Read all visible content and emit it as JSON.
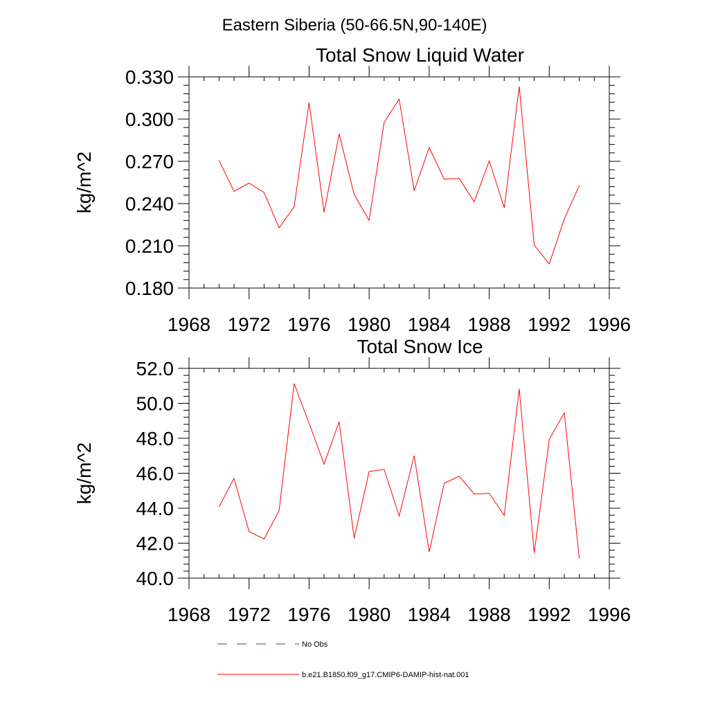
{
  "figure": {
    "title": "Eastern Siberia (50-66.5N,90-140E)"
  },
  "chart_data": [
    {
      "type": "line",
      "title": "Total Snow Liquid Water",
      "xlabel": "",
      "ylabel": "kg/m^2",
      "xlim": [
        1968,
        1996
      ],
      "ylim": [
        0.18,
        0.33
      ],
      "xticks": [
        1968,
        1972,
        1976,
        1980,
        1984,
        1988,
        1992,
        1996
      ],
      "xtick_labels": [
        "1968",
        "1972",
        "1976",
        "1980",
        "1984",
        "1988",
        "1992",
        "1996"
      ],
      "yticks": [
        0.18,
        0.21,
        0.24,
        0.27,
        0.3,
        0.33
      ],
      "ytick_labels": [
        "0.180",
        "0.210",
        "0.240",
        "0.270",
        "0.300",
        "0.330"
      ],
      "grid": false,
      "x": [
        1970,
        1971,
        1972,
        1973,
        1974,
        1975,
        1976,
        1977,
        1978,
        1979,
        1980,
        1981,
        1982,
        1983,
        1984,
        1985,
        1986,
        1987,
        1988,
        1989,
        1990,
        1991,
        1992,
        1993,
        1994
      ],
      "series": [
        {
          "name": "b.e21.B1850.f09_g17.CMIP6-DAMIP-hist-nat.001",
          "color": "#ff0000",
          "values": [
            0.2705,
            0.2487,
            0.2545,
            0.2478,
            0.2228,
            0.2378,
            0.3117,
            0.2337,
            0.2895,
            0.2465,
            0.228,
            0.2976,
            0.3142,
            0.2491,
            0.2798,
            0.2573,
            0.2578,
            0.2413,
            0.2703,
            0.237,
            0.3231,
            0.2105,
            0.1971,
            0.2291,
            0.2527
          ]
        }
      ]
    },
    {
      "type": "line",
      "title": "Total Snow Ice",
      "xlabel": "",
      "ylabel": "kg/m^2",
      "xlim": [
        1968,
        1996
      ],
      "ylim": [
        40.0,
        52.0
      ],
      "xticks": [
        1968,
        1972,
        1976,
        1980,
        1984,
        1988,
        1992,
        1996
      ],
      "xtick_labels": [
        "1968",
        "1972",
        "1976",
        "1980",
        "1984",
        "1988",
        "1992",
        "1996"
      ],
      "yticks": [
        40.0,
        42.0,
        44.0,
        46.0,
        48.0,
        50.0,
        52.0
      ],
      "ytick_labels": [
        "40.0",
        "42.0",
        "44.0",
        "46.0",
        "48.0",
        "50.0",
        "52.0"
      ],
      "grid": false,
      "x": [
        1970,
        1971,
        1972,
        1973,
        1974,
        1975,
        1976,
        1977,
        1978,
        1979,
        1980,
        1981,
        1982,
        1983,
        1984,
        1985,
        1986,
        1987,
        1988,
        1989,
        1990,
        1991,
        1992,
        1993,
        1994
      ],
      "series": [
        {
          "name": "b.e21.B1850.f09_g17.CMIP6-DAMIP-hist-nat.001",
          "color": "#ff0000",
          "values": [
            44.08,
            45.71,
            42.67,
            42.24,
            43.86,
            51.13,
            48.85,
            46.52,
            48.95,
            42.28,
            46.1,
            46.22,
            43.56,
            47.01,
            41.5,
            45.43,
            45.83,
            44.81,
            44.85,
            43.59,
            50.83,
            41.44,
            47.94,
            49.45,
            41.13
          ]
        }
      ]
    }
  ],
  "legend": {
    "placement": "bottom-center",
    "entries": [
      {
        "label": "No Obs",
        "style": "dashed",
        "color": "#3c3c8a"
      },
      {
        "label": "b.e21.B1850.f09_g17.CMIP6-DAMIP-hist-nat.001",
        "style": "solid",
        "color": "#ff0000"
      }
    ]
  }
}
